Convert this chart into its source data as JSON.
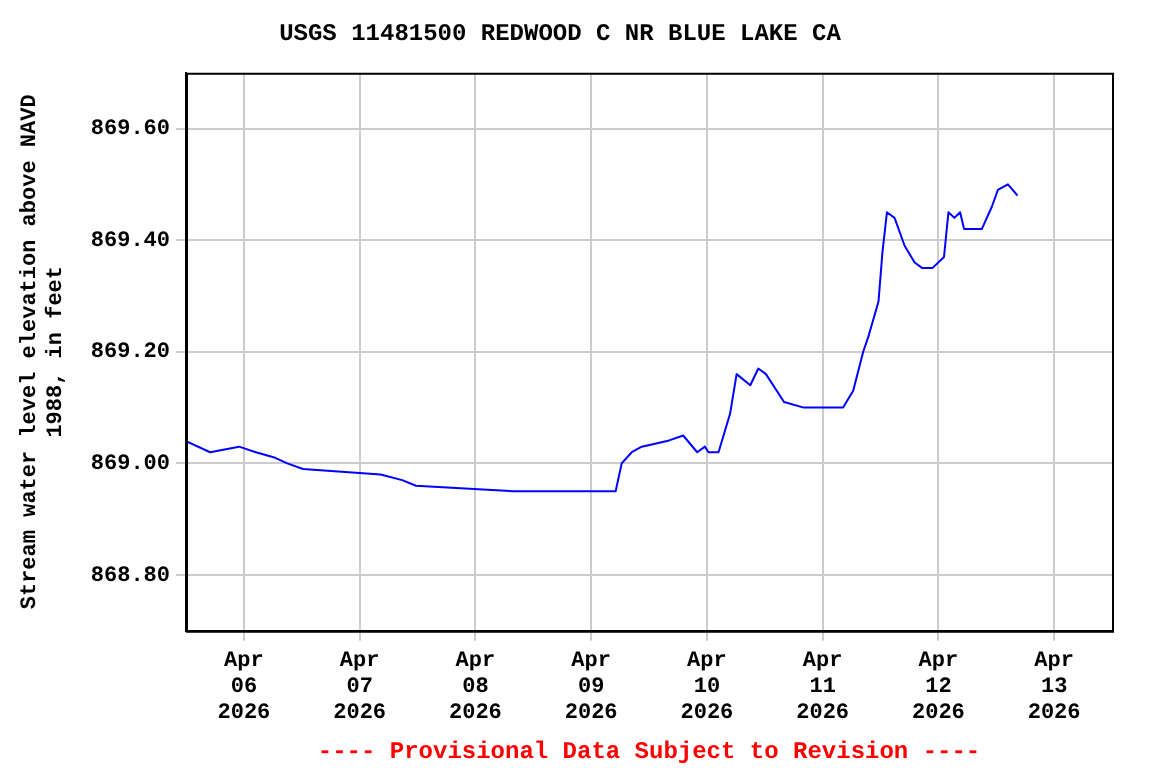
{
  "chart_data": {
    "type": "line",
    "title": "USGS 11481500 REDWOOD C NR BLUE LAKE CA",
    "ylabel": "Stream water level elevation above NAVD 1988, in feet",
    "annotations": [
      "---- Provisional Data Subject to Revision ----"
    ],
    "x": [
      "2026-04-05T12:00",
      "2026-04-05T17:00",
      "2026-04-05T23:00",
      "2026-04-06T02:30",
      "2026-04-06T06:30",
      "2026-04-06T09:00",
      "2026-04-06T12:15",
      "2026-04-07T04:20",
      "2026-04-07T08:50",
      "2026-04-07T11:40",
      "2026-04-08T07:50",
      "2026-04-09T05:05",
      "2026-04-09T06:20",
      "2026-04-09T08:25",
      "2026-04-09T10:30",
      "2026-04-09T15:45",
      "2026-04-09T19:05",
      "2026-04-09T22:00",
      "2026-04-09T23:35",
      "2026-04-10T00:20",
      "2026-04-10T02:25",
      "2026-04-10T04:50",
      "2026-04-10T06:10",
      "2026-04-10T09:00",
      "2026-04-10T10:40",
      "2026-04-10T12:15",
      "2026-04-10T16:00",
      "2026-04-10T20:05",
      "2026-04-11T04:15",
      "2026-04-11T06:20",
      "2026-04-11T08:25",
      "2026-04-11T09:35",
      "2026-04-11T11:35",
      "2026-04-11T12:25",
      "2026-04-11T13:20",
      "2026-04-11T14:55",
      "2026-04-11T17:00",
      "2026-04-11T19:05",
      "2026-04-11T20:40",
      "2026-04-11T22:45",
      "2026-04-12T01:10",
      "2026-04-12T02:05",
      "2026-04-12T03:20",
      "2026-04-12T04:30",
      "2026-04-12T05:20",
      "2026-04-12T09:00",
      "2026-04-12T11:05",
      "2026-04-12T12:20",
      "2026-04-12T14:25",
      "2026-04-12T16:25"
    ],
    "series": [
      {
        "color": "#0000ff",
        "values": [
          869.04,
          869.02,
          869.03,
          869.02,
          869.01,
          869.0,
          868.99,
          868.98,
          868.97,
          868.96,
          868.95,
          868.95,
          869.0,
          869.02,
          869.03,
          869.04,
          869.05,
          869.02,
          869.03,
          869.02,
          869.02,
          869.09,
          869.16,
          869.14,
          869.17,
          869.16,
          869.11,
          869.1,
          869.1,
          869.13,
          869.2,
          869.23,
          869.29,
          869.38,
          869.45,
          869.44,
          869.39,
          869.36,
          869.35,
          869.35,
          869.37,
          869.45,
          869.44,
          869.45,
          869.42,
          869.42,
          869.46,
          869.49,
          869.5,
          869.48
        ]
      }
    ],
    "xlim": [
      "2026-04-05T12:00",
      "2026-04-13T12:00"
    ],
    "xticks": [
      {
        "value": "2026-04-06",
        "label": "Apr 06 2026"
      },
      {
        "value": "2026-04-07",
        "label": "Apr 07 2026"
      },
      {
        "value": "2026-04-08",
        "label": "Apr 08 2026"
      },
      {
        "value": "2026-04-09",
        "label": "Apr 09 2026"
      },
      {
        "value": "2026-04-10",
        "label": "Apr 10 2026"
      },
      {
        "value": "2026-04-11",
        "label": "Apr 11 2026"
      },
      {
        "value": "2026-04-12",
        "label": "Apr 12 2026"
      },
      {
        "value": "2026-04-13",
        "label": "Apr 13 2026"
      }
    ],
    "ylim": [
      868.7,
      869.7
    ],
    "yticks": [
      {
        "value": 868.8,
        "label": "868.80"
      },
      {
        "value": 869.0,
        "label": "869.00"
      },
      {
        "value": 869.2,
        "label": "869.20"
      },
      {
        "value": 869.4,
        "label": "869.40"
      },
      {
        "value": 869.6,
        "label": "869.60"
      }
    ],
    "grid": true,
    "legend": false,
    "marker": "none",
    "line_style": "solid"
  }
}
